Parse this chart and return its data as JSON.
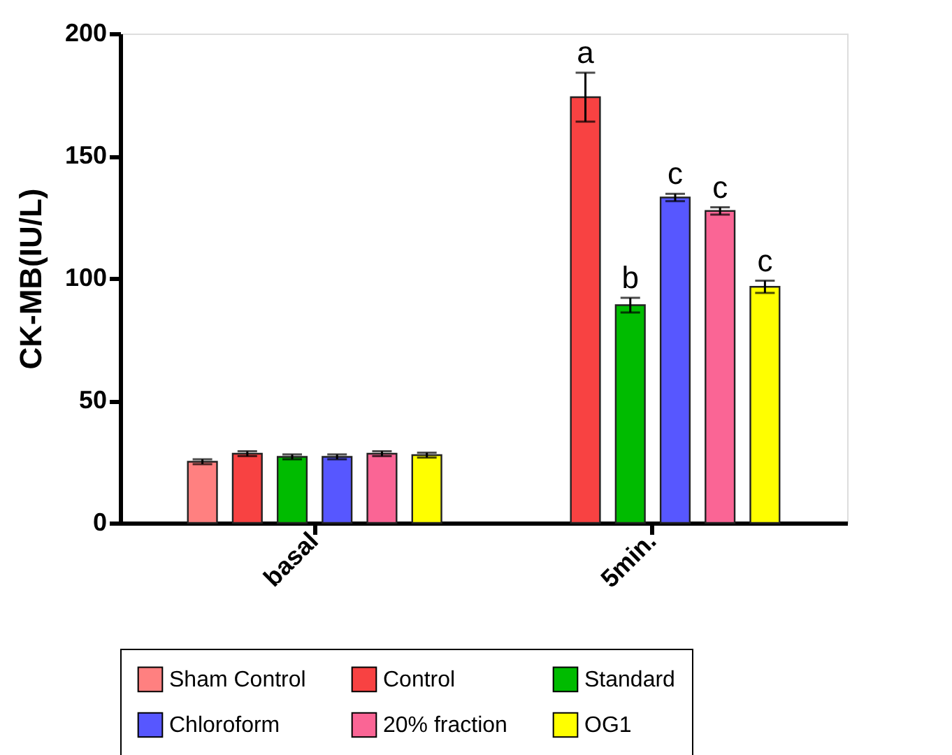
{
  "chart_data": {
    "type": "bar",
    "ylabel": "CK-MB(IU/L)",
    "categories": [
      "basal",
      "5min."
    ],
    "series": [
      {
        "name": "Sham Control",
        "color": "#ff8080",
        "values": [
          25,
          null
        ],
        "errors": [
          1,
          null
        ]
      },
      {
        "name": "Control",
        "color": "#f84242",
        "values": [
          28.3,
          174
        ],
        "errors": [
          1,
          10
        ]
      },
      {
        "name": "Standard",
        "color": "#00bb00",
        "values": [
          27,
          89
        ],
        "errors": [
          1,
          3
        ]
      },
      {
        "name": "Chloroform",
        "color": "#5757ff",
        "values": [
          27,
          133
        ],
        "errors": [
          1,
          1.5
        ]
      },
      {
        "name": "20% fraction",
        "color": "#fa6595",
        "values": [
          28.3,
          127.5
        ],
        "errors": [
          1,
          1.5
        ]
      },
      {
        "name": "OG1",
        "color": "#ffff00",
        "values": [
          27.7,
          96.5
        ],
        "errors": [
          1,
          2.5
        ]
      }
    ],
    "ylim": [
      0,
      200
    ],
    "yticks": [
      0,
      50,
      100,
      150,
      200
    ],
    "grid": false,
    "legend": "bottom",
    "annotations": [
      "a",
      "b",
      "c",
      "c",
      "c"
    ]
  }
}
